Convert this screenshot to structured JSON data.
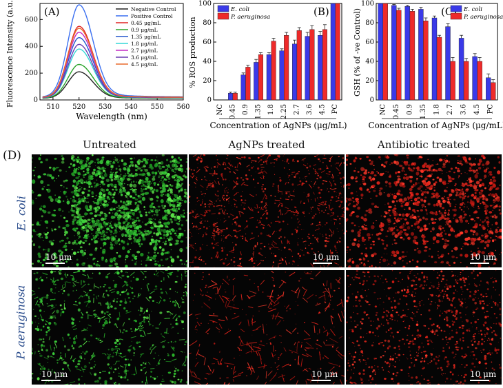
{
  "chart_data": [
    {
      "panel": "(A)",
      "type": "line",
      "xlabel": "Wavelength (nm)",
      "ylabel": "Fluorescence Intensity (a.u.)",
      "xlim": [
        505,
        560
      ],
      "ylim": [
        0,
        720
      ],
      "xticks": [
        510,
        520,
        530,
        540,
        550,
        560
      ],
      "yticks": [
        0,
        200,
        400,
        600
      ],
      "peak_x": 520,
      "series": [
        {
          "name": "Negative Control",
          "color": "#222222",
          "peak": 210
        },
        {
          "name": "Positive Control",
          "color": "#3a6ff0",
          "peak": 710
        },
        {
          "name": "0.45 μg/mL",
          "color": "#e02424",
          "peak": 550
        },
        {
          "name": "0.9 μg/mL",
          "color": "#2aa32a",
          "peak": 265
        },
        {
          "name": "1.35 μg/mL",
          "color": "#2255cc",
          "peak": 465
        },
        {
          "name": "1.8 μg/mL",
          "color": "#33d7d7",
          "peak": 380
        },
        {
          "name": "2.7 μg/mL",
          "color": "#c42ac4",
          "peak": 505
        },
        {
          "name": "3.6 μg/mL",
          "color": "#6a3ab0",
          "peak": 415
        },
        {
          "name": "4.5 μg/mL",
          "color": "#e86a2a",
          "peak": 535
        }
      ]
    },
    {
      "panel": "(B)",
      "type": "bar",
      "xlabel": "Concentration of AgNPs (μg/mL)",
      "ylabel": "% ROS production",
      "ylim": [
        0,
        100
      ],
      "yticks": [
        0,
        20,
        40,
        60,
        80,
        100
      ],
      "categories": [
        "NC",
        "0.45",
        "0.9",
        "1.35",
        "1.8",
        "2.25",
        "2.7",
        "3.6",
        "4.5",
        "PC"
      ],
      "series": [
        {
          "name": "E. coli",
          "color": "#3a3ae8",
          "values": [
            0,
            7,
            26,
            39,
            47,
            51,
            58,
            66,
            67,
            100
          ],
          "errors": [
            0,
            1,
            2,
            3,
            2,
            2,
            4,
            4,
            4,
            0
          ]
        },
        {
          "name": "P. aeruginosa",
          "color": "#ee2a2a",
          "values": [
            0,
            7,
            34,
            47,
            61,
            67,
            72,
            73,
            73,
            100
          ],
          "errors": [
            0,
            1,
            2,
            2,
            3,
            3,
            3,
            4,
            5,
            0
          ]
        }
      ]
    },
    {
      "panel": "(C)",
      "type": "bar",
      "xlabel": "Concentration of AgNPs (μg/mL)",
      "ylabel": "GSH (% of -ve Control)",
      "ylim": [
        0,
        100
      ],
      "yticks": [
        0,
        20,
        40,
        60,
        80,
        100
      ],
      "categories": [
        "NC",
        "0.45",
        "0.9",
        "1.35",
        "1.8",
        "2.7",
        "3.6",
        "4.5",
        "PC"
      ],
      "series": [
        {
          "name": "E. coli",
          "color": "#3a3ae8",
          "values": [
            100,
            98,
            97,
            94,
            85,
            76,
            64,
            45,
            23
          ],
          "errors": [
            0,
            1,
            1,
            2,
            2,
            3,
            3,
            3,
            4
          ]
        },
        {
          "name": "P. aeruginosa",
          "color": "#ee2a2a",
          "values": [
            100,
            93,
            92,
            82,
            65,
            40,
            40,
            40,
            18
          ],
          "errors": [
            0,
            2,
            2,
            3,
            2,
            4,
            3,
            4,
            3
          ]
        }
      ]
    }
  ],
  "panelD": {
    "label": "(D)",
    "columns": [
      "Untreated",
      "AgNPs treated",
      "Antibiotic treated"
    ],
    "rows": [
      "E. coli",
      "P. aeruginosa"
    ],
    "scale_bar": "10 μm"
  }
}
